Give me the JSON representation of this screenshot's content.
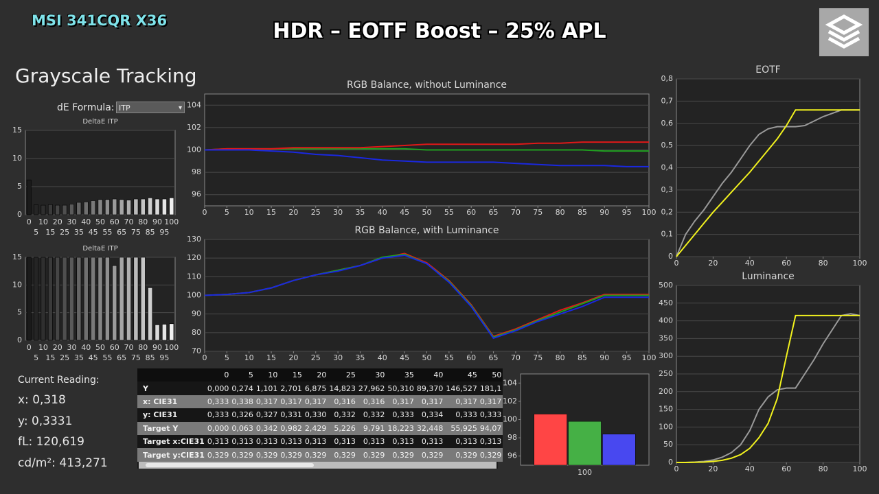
{
  "header": {
    "brand": "MSI 341CQR X36",
    "title": "HDR – EOTF Boost – 25% APL"
  },
  "section_title": "Grayscale Tracking",
  "formula": {
    "label": "dE Formula:",
    "value": "ITP"
  },
  "reading": {
    "title": "Current Reading:",
    "lines": [
      "x: 0,318",
      "y: 0,3331",
      "fL: 120,619",
      "cd/m²: 413,271"
    ]
  },
  "table": {
    "columns": [
      "0",
      "5",
      "10",
      "15",
      "20",
      "25",
      "30",
      "35",
      "40",
      "45",
      "50"
    ],
    "rows": [
      {
        "label": "Y",
        "values": [
          "0,000",
          "0,274",
          "1,101",
          "2,701",
          "6,875",
          "14,823",
          "27,962",
          "50,310",
          "89,370",
          "146,527",
          "181,1"
        ]
      },
      {
        "label": "x: CIE31",
        "values": [
          "0,333",
          "0,338",
          "0,317",
          "0,317",
          "0,317",
          "0,316",
          "0,316",
          "0,317",
          "0,317",
          "0,317",
          "0,317"
        ]
      },
      {
        "label": "y: CIE31",
        "values": [
          "0,333",
          "0,326",
          "0,327",
          "0,331",
          "0,330",
          "0,332",
          "0,332",
          "0,333",
          "0,334",
          "0,333",
          "0,333"
        ]
      },
      {
        "label": "Target Y",
        "values": [
          "0,000",
          "0,063",
          "0,342",
          "0,982",
          "2,429",
          "5,226",
          "9,791",
          "18,223",
          "32,448",
          "55,925",
          "94,07"
        ]
      },
      {
        "label": "Target x:CIE31",
        "values": [
          "0,313",
          "0,313",
          "0,313",
          "0,313",
          "0,313",
          "0,313",
          "0,313",
          "0,313",
          "0,313",
          "0,313",
          "0,313"
        ]
      },
      {
        "label": "Target y:CIE31",
        "values": [
          "0,329",
          "0,329",
          "0,329",
          "0,329",
          "0,329",
          "0,329",
          "0,329",
          "0,329",
          "0,329",
          "0,329",
          "0,329"
        ]
      }
    ]
  },
  "chart_data": [
    {
      "type": "bar",
      "title": "DeltaE ITP",
      "categories": [
        "0",
        "5",
        "10",
        "15",
        "20",
        "25",
        "30",
        "35",
        "40",
        "45",
        "50",
        "55",
        "60",
        "65",
        "70",
        "75",
        "80",
        "85",
        "90",
        "95",
        "100"
      ],
      "values": [
        6.2,
        1.8,
        1.7,
        1.8,
        1.7,
        1.7,
        1.9,
        2.2,
        2.3,
        2.5,
        2.7,
        2.7,
        2.8,
        2.7,
        2.6,
        2.8,
        2.8,
        3.0,
        2.8,
        2.8,
        3.0
      ],
      "colors": [
        "#1a1a1a",
        "#252525",
        "#2f2f2f",
        "#3a3a3a",
        "#454545",
        "#4f4f4f",
        "#5a5a5a",
        "#656565",
        "#6f6f6f",
        "#7a7a7a",
        "#858585",
        "#8f8f8f",
        "#9a9a9a",
        "#a5a5a5",
        "#afafaf",
        "#bababa",
        "#c5c5c5",
        "#cfcfcf",
        "#dadada",
        "#e5e5e5",
        "#f0f0f0"
      ],
      "ylim": [
        0,
        15
      ],
      "yticks": [
        0,
        5,
        10,
        15
      ],
      "grid": true
    },
    {
      "type": "bar",
      "title": "DeltaE ITP",
      "categories": [
        "0",
        "5",
        "10",
        "15",
        "20",
        "25",
        "30",
        "35",
        "40",
        "45",
        "50",
        "55",
        "60",
        "65",
        "70",
        "75",
        "80",
        "85",
        "90",
        "95",
        "100"
      ],
      "values": [
        15,
        15,
        15,
        15,
        15,
        15,
        15,
        15,
        15,
        15,
        15,
        15,
        13.5,
        15,
        15,
        15,
        15,
        9.5,
        2.8,
        2.9,
        3.0
      ],
      "colors": [
        "#1a1a1a",
        "#252525",
        "#2f2f2f",
        "#3a3a3a",
        "#454545",
        "#4f4f4f",
        "#5a5a5a",
        "#656565",
        "#6f6f6f",
        "#7a7a7a",
        "#858585",
        "#8f8f8f",
        "#9a9a9a",
        "#a5a5a5",
        "#afafaf",
        "#bababa",
        "#c5c5c5",
        "#cfcfcf",
        "#dadada",
        "#e5e5e5",
        "#f0f0f0"
      ],
      "ylim": [
        0,
        15
      ],
      "yticks": [
        0,
        5,
        10,
        15
      ],
      "grid": true
    },
    {
      "type": "line",
      "title": "RGB Balance, without Luminance",
      "x": [
        0,
        5,
        10,
        15,
        20,
        25,
        30,
        35,
        40,
        45,
        50,
        55,
        60,
        65,
        70,
        75,
        80,
        85,
        90,
        95,
        100
      ],
      "series": [
        {
          "color": "#1fa01f",
          "values": [
            100,
            100.1,
            100.1,
            100.1,
            100.1,
            100.1,
            100.1,
            100.1,
            100.1,
            100.1,
            100,
            100,
            100,
            100,
            100,
            100,
            100,
            100,
            99.9,
            99.9,
            99.9
          ]
        },
        {
          "color": "#e01818",
          "values": [
            100,
            100.1,
            100.1,
            100.1,
            100.2,
            100.2,
            100.2,
            100.2,
            100.3,
            100.4,
            100.5,
            100.5,
            100.5,
            100.5,
            100.5,
            100.6,
            100.6,
            100.7,
            100.7,
            100.7,
            100.7
          ]
        },
        {
          "color": "#1a28e0",
          "values": [
            100,
            100,
            100,
            99.9,
            99.8,
            99.6,
            99.5,
            99.3,
            99.1,
            99.0,
            98.9,
            98.9,
            98.9,
            98.9,
            98.8,
            98.7,
            98.6,
            98.6,
            98.6,
            98.5,
            98.5
          ]
        }
      ],
      "xlim": [
        0,
        100
      ],
      "xticks": [
        0,
        5,
        10,
        15,
        20,
        25,
        30,
        35,
        40,
        45,
        50,
        55,
        60,
        65,
        70,
        75,
        80,
        85,
        90,
        95,
        100
      ],
      "ylim": [
        95,
        105
      ],
      "yticks": [
        96,
        98,
        100,
        102,
        104
      ],
      "grid": true
    },
    {
      "type": "line",
      "title": "RGB Balance, with Luminance",
      "x": [
        0,
        5,
        10,
        15,
        20,
        25,
        30,
        35,
        40,
        45,
        50,
        55,
        60,
        65,
        70,
        75,
        80,
        85,
        90,
        95,
        100
      ],
      "series": [
        {
          "color": "#e01818",
          "values": [
            100,
            100.5,
            101.5,
            104,
            108,
            111,
            113.5,
            116,
            120,
            122.5,
            117.5,
            108,
            95,
            78,
            82,
            87,
            92,
            96,
            100.5,
            100.5,
            100.5
          ]
        },
        {
          "color": "#1fa01f",
          "values": [
            100,
            100.5,
            101.5,
            104,
            108,
            111,
            113.5,
            116,
            120.5,
            122,
            117,
            107.5,
            94.5,
            77.5,
            81.5,
            86.5,
            91,
            95.5,
            100,
            100,
            100
          ]
        },
        {
          "color": "#1a28e0",
          "values": [
            100,
            100.5,
            101.5,
            104,
            108,
            111,
            113,
            116,
            120,
            121.5,
            117,
            107,
            94,
            77,
            81,
            86,
            90,
            94,
            99,
            99,
            99
          ]
        }
      ],
      "xlim": [
        0,
        100
      ],
      "xticks": [
        0,
        5,
        10,
        15,
        20,
        25,
        30,
        35,
        40,
        45,
        50,
        55,
        60,
        65,
        70,
        75,
        80,
        85,
        90,
        95,
        100
      ],
      "ylim": [
        70,
        130
      ],
      "yticks": [
        70,
        80,
        90,
        100,
        110,
        120,
        130
      ],
      "grid": true
    },
    {
      "type": "line",
      "title": "EOTF",
      "x": [
        0,
        5,
        10,
        15,
        20,
        25,
        30,
        35,
        40,
        45,
        50,
        55,
        60,
        65,
        70,
        75,
        80,
        85,
        90,
        95,
        100
      ],
      "series": [
        {
          "color": "#9a9a9a",
          "values": [
            0,
            0.1,
            0.16,
            0.21,
            0.27,
            0.33,
            0.38,
            0.44,
            0.5,
            0.55,
            0.575,
            0.585,
            0.585,
            0.585,
            0.59,
            0.61,
            0.63,
            0.645,
            0.66,
            0.66,
            0.66
          ]
        },
        {
          "color": "#f2f21e",
          "values": [
            0,
            0.05,
            0.1,
            0.15,
            0.2,
            0.245,
            0.29,
            0.335,
            0.38,
            0.43,
            0.48,
            0.53,
            0.59,
            0.66,
            0.66,
            0.66,
            0.66,
            0.66,
            0.66,
            0.66,
            0.66
          ]
        }
      ],
      "xlim": [
        0,
        100
      ],
      "xticks": [
        0,
        20,
        40,
        60,
        80,
        100
      ],
      "ylim": [
        0,
        0.8
      ],
      "yticks": [
        0,
        {
          "value": 0.1,
          "label": "0,1"
        },
        {
          "value": 0.2,
          "label": "0,2"
        },
        {
          "value": 0.3,
          "label": "0,3"
        },
        {
          "value": 0.4,
          "label": "0,4"
        },
        {
          "value": 0.5,
          "label": "0,5"
        },
        {
          "value": 0.6,
          "label": "0,6"
        },
        {
          "value": 0.7,
          "label": "0,7"
        },
        {
          "value": 0.8,
          "label": "0,8"
        }
      ],
      "grid": true
    },
    {
      "type": "line",
      "title": "Luminance",
      "x": [
        0,
        5,
        10,
        15,
        20,
        25,
        30,
        35,
        40,
        45,
        50,
        55,
        60,
        65,
        70,
        75,
        80,
        85,
        90,
        95,
        100
      ],
      "series": [
        {
          "color": "#9a9a9a",
          "values": [
            0,
            0,
            1,
            3,
            7,
            15,
            28,
            50,
            90,
            150,
            185,
            205,
            210,
            210,
            250,
            290,
            335,
            375,
            415,
            420,
            415
          ]
        },
        {
          "color": "#f2f21e",
          "values": [
            0,
            0,
            0.5,
            1,
            3,
            6,
            12,
            22,
            40,
            70,
            110,
            180,
            300,
            415,
            415,
            415,
            415,
            415,
            415,
            415,
            415
          ]
        }
      ],
      "xlim": [
        0,
        100
      ],
      "xticks": [
        0,
        20,
        40,
        60,
        80,
        100
      ],
      "ylim": [
        0,
        500
      ],
      "yticks": [
        0,
        50,
        100,
        150,
        200,
        250,
        300,
        350,
        400,
        450,
        500
      ],
      "grid": true
    },
    {
      "type": "bar",
      "categories": [
        "100"
      ],
      "series": [
        {
          "color": "#ff4545",
          "values": [
            100.6
          ]
        },
        {
          "color": "#45b045",
          "values": [
            99.8
          ]
        },
        {
          "color": "#4848f0",
          "values": [
            98.4
          ]
        }
      ],
      "ylim": [
        95,
        105
      ],
      "yticks": [
        96,
        98,
        100,
        102,
        104
      ],
      "grid": false
    }
  ]
}
